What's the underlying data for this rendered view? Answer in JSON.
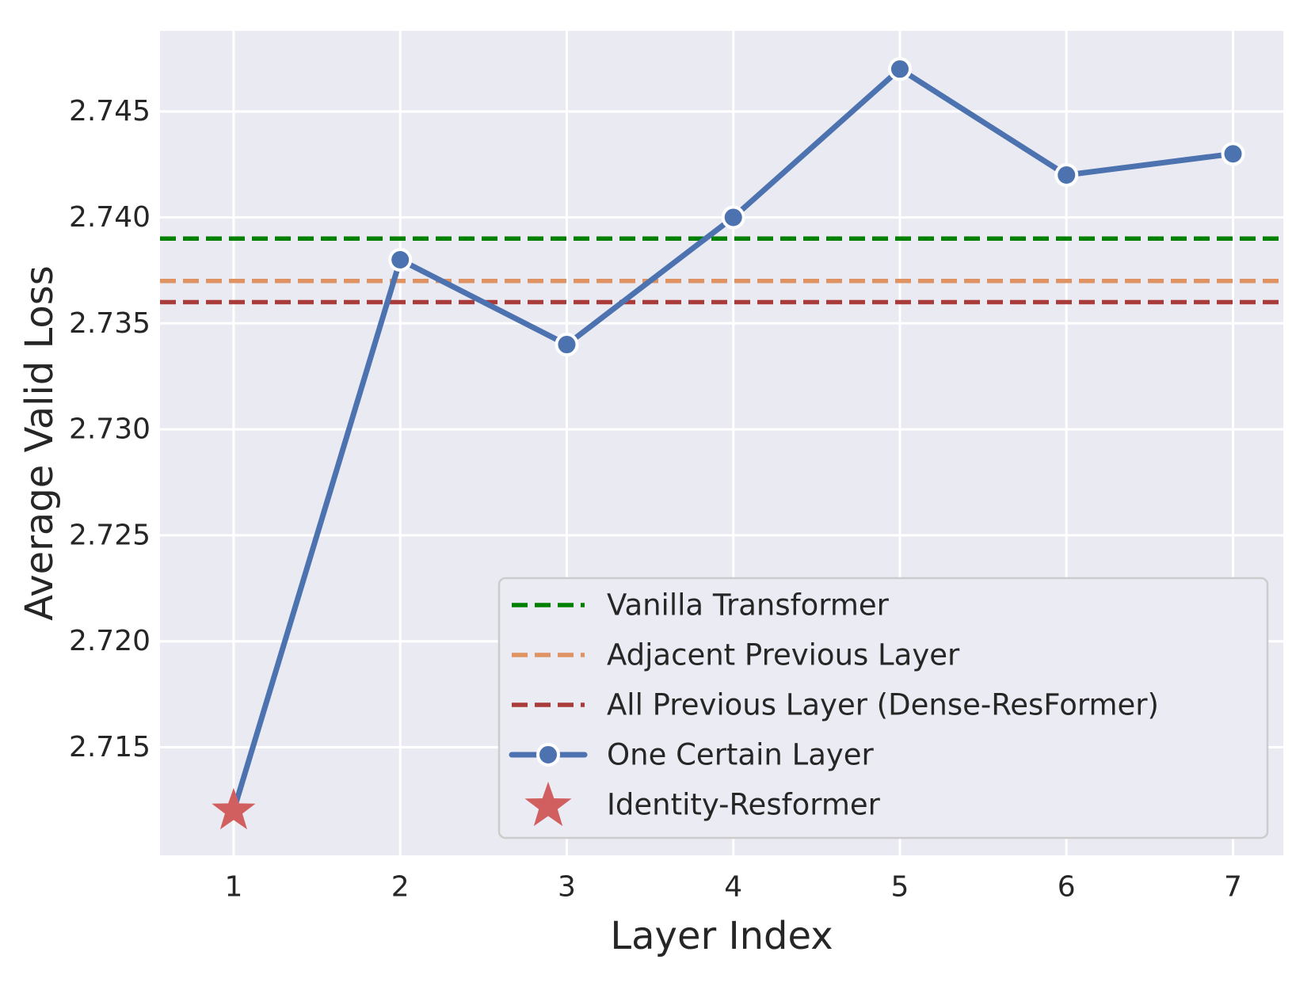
{
  "figure": {
    "background": "#ffffff",
    "plot_background": "#eaeaf2",
    "grid_color": "#ffffff",
    "text_color": "#262626",
    "legend_border_color": "#cccccc",
    "legend_background": "#ebebf3"
  },
  "chart_data": {
    "type": "line",
    "title": "",
    "xlabel": "Layer Index",
    "ylabel": "Average Valid Loss",
    "x": [
      1,
      2,
      3,
      4,
      5,
      6,
      7
    ],
    "xtick_labels": [
      "1",
      "2",
      "3",
      "4",
      "5",
      "6",
      "7"
    ],
    "yticks": [
      2.715,
      2.72,
      2.725,
      2.73,
      2.735,
      2.74,
      2.745
    ],
    "ytick_labels": [
      "2.715",
      "2.720",
      "2.725",
      "2.730",
      "2.735",
      "2.740",
      "2.745"
    ],
    "xlim": [
      0.558,
      7.302
    ],
    "ylim": [
      2.7099,
      2.7488
    ],
    "grid": true,
    "series": [
      {
        "name": "One Certain Layer",
        "type": "line",
        "color": "#4c72b0",
        "marker": "circle",
        "marker_edge_color": "#ffffff",
        "values": [
          2.712,
          2.738,
          2.734,
          2.74,
          2.747,
          2.742,
          2.743
        ]
      }
    ],
    "hlines": [
      {
        "name": "Vanilla Transformer",
        "value": 2.739,
        "color": "#008000",
        "style": "dashed"
      },
      {
        "name": "Adjacent Previous Layer",
        "value": 2.737,
        "color": "#df9262",
        "style": "dashed"
      },
      {
        "name": "All Previous Layer (Dense-ResFormer)",
        "value": 2.736,
        "color": "#a93b3b",
        "style": "dashed"
      }
    ],
    "points": [
      {
        "name": "Identity-Resformer",
        "x": 1,
        "y": 2.712,
        "marker": "star",
        "color": "#d25f5f"
      }
    ],
    "legend": {
      "position": "lower right",
      "entries": [
        {
          "label": "Vanilla Transformer",
          "swatch": "dashed-line",
          "color": "#008000"
        },
        {
          "label": "Adjacent Previous Layer",
          "swatch": "dashed-line",
          "color": "#df9262"
        },
        {
          "label": "All Previous Layer (Dense-ResFormer)",
          "swatch": "dashed-line",
          "color": "#a93b3b"
        },
        {
          "label": "One Certain Layer",
          "swatch": "line-circle-marker",
          "color": "#4c72b0"
        },
        {
          "label": "Identity-Resformer",
          "swatch": "star-marker",
          "color": "#d25f5f"
        }
      ]
    }
  }
}
